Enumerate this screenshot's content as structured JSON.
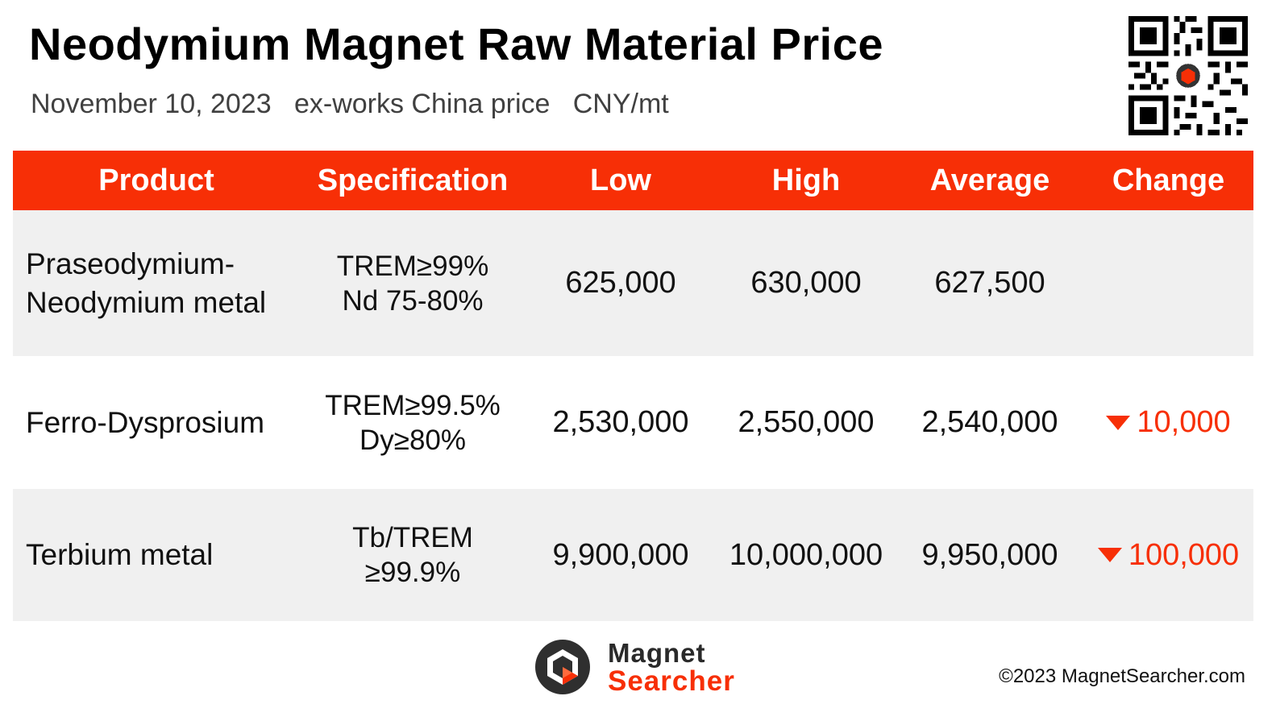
{
  "header": {
    "title": "Neodymium Magnet Raw Material Price",
    "subtitle": "November 10, 2023   ex-works China price   CNY/mt"
  },
  "table": {
    "columns": [
      "Product",
      "Specification",
      "Low",
      "High",
      "Average",
      "Change"
    ],
    "rows": [
      {
        "product": [
          "Praseodymium-",
          "Neodymium metal"
        ],
        "spec": [
          "TREM≥99%",
          "Nd 75-80%"
        ],
        "low": "625,000",
        "high": "630,000",
        "average": "627,500",
        "change": ""
      },
      {
        "product": [
          "Ferro-Dysprosium"
        ],
        "spec": [
          "TREM≥99.5%",
          "Dy≥80%"
        ],
        "low": "2,530,000",
        "high": "2,550,000",
        "average": "2,540,000",
        "change": "10,000",
        "change_direction": "down"
      },
      {
        "product": [
          "Terbium metal"
        ],
        "spec": [
          "Tb/TREM",
          "≥99.9%"
        ],
        "low": "9,900,000",
        "high": "10,000,000",
        "average": "9,950,000",
        "change": "100,000",
        "change_direction": "down"
      }
    ]
  },
  "colors": {
    "accent": "#f72f06",
    "row_shade": "#f0f0f0",
    "text": "#111111"
  },
  "icons": {
    "qr": "qr-code-icon",
    "change_down": "down-triangle-icon",
    "logo": "magnet-searcher-logo"
  },
  "footer": {
    "logo_line1": "Magnet",
    "logo_line2": "Searcher",
    "copyright": "©2023 MagnetSearcher.com"
  }
}
